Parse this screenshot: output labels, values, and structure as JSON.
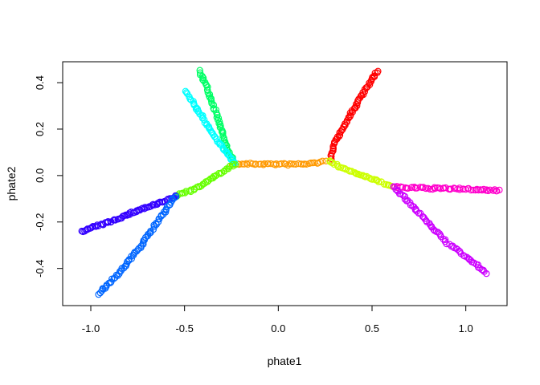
{
  "chart_data": {
    "type": "scatter",
    "title": "",
    "xlabel": "phate1",
    "ylabel": "phate2",
    "xlim": [
      -1.15,
      1.22
    ],
    "ylim": [
      -0.56,
      0.49
    ],
    "xticks": [
      -1.0,
      -0.5,
      0.0,
      0.5,
      1.0
    ],
    "yticks": [
      -0.4,
      -0.2,
      0.0,
      0.2,
      0.4
    ],
    "xtick_labels": [
      "-1.0",
      "-0.5",
      "0.0",
      "0.5",
      "1.0"
    ],
    "ytick_labels": [
      "-0.4",
      "-0.2",
      "0.0",
      "0.2",
      "0.4"
    ],
    "grid": false,
    "legend": "none",
    "marker": "open-circle",
    "branches": [
      {
        "color": "#FF9900",
        "path": [
          [
            -0.24,
            0.05
          ],
          [
            -0.1,
            0.05
          ],
          [
            0.05,
            0.048
          ],
          [
            0.15,
            0.05
          ],
          [
            0.25,
            0.06
          ]
        ],
        "n": 45
      },
      {
        "color": "#00FF66",
        "path": [
          [
            -0.42,
            0.45
          ],
          [
            -0.37,
            0.36
          ],
          [
            -0.32,
            0.24
          ],
          [
            -0.28,
            0.13
          ],
          [
            -0.24,
            0.06
          ]
        ],
        "n": 60
      },
      {
        "color": "#00FFFF",
        "path": [
          [
            -0.49,
            0.36
          ],
          [
            -0.42,
            0.27
          ],
          [
            -0.35,
            0.18
          ],
          [
            -0.29,
            0.11
          ],
          [
            -0.23,
            0.05
          ]
        ],
        "n": 55
      },
      {
        "color": "#66FF00",
        "path": [
          [
            -0.23,
            0.05
          ],
          [
            -0.33,
            0.0
          ],
          [
            -0.45,
            -0.06
          ],
          [
            -0.55,
            -0.09
          ]
        ],
        "n": 40
      },
      {
        "color": "#3300FF",
        "path": [
          [
            -1.05,
            -0.24
          ],
          [
            -0.9,
            -0.2
          ],
          [
            -0.75,
            -0.15
          ],
          [
            -0.6,
            -0.11
          ],
          [
            -0.55,
            -0.09
          ]
        ],
        "n": 70
      },
      {
        "color": "#0066FF",
        "path": [
          [
            -0.96,
            -0.51
          ],
          [
            -0.85,
            -0.42
          ],
          [
            -0.73,
            -0.3
          ],
          [
            -0.62,
            -0.17
          ],
          [
            -0.55,
            -0.09
          ]
        ],
        "n": 70
      },
      {
        "color": "#FF0000",
        "path": [
          [
            0.28,
            0.06
          ],
          [
            0.29,
            0.12
          ],
          [
            0.36,
            0.23
          ],
          [
            0.45,
            0.35
          ],
          [
            0.53,
            0.45
          ]
        ],
        "n": 65
      },
      {
        "color": "#CCFF00",
        "path": [
          [
            0.27,
            0.06
          ],
          [
            0.35,
            0.03
          ],
          [
            0.45,
            0.0
          ],
          [
            0.55,
            -0.03
          ],
          [
            0.62,
            -0.05
          ]
        ],
        "n": 45
      },
      {
        "color": "#FF00CC",
        "path": [
          [
            0.62,
            -0.05
          ],
          [
            0.8,
            -0.055
          ],
          [
            1.0,
            -0.058
          ],
          [
            1.18,
            -0.065
          ]
        ],
        "n": 60
      },
      {
        "color": "#CC00FF",
        "path": [
          [
            0.62,
            -0.05
          ],
          [
            0.75,
            -0.16
          ],
          [
            0.9,
            -0.29
          ],
          [
            1.05,
            -0.38
          ],
          [
            1.11,
            -0.42
          ]
        ],
        "n": 65
      }
    ]
  }
}
